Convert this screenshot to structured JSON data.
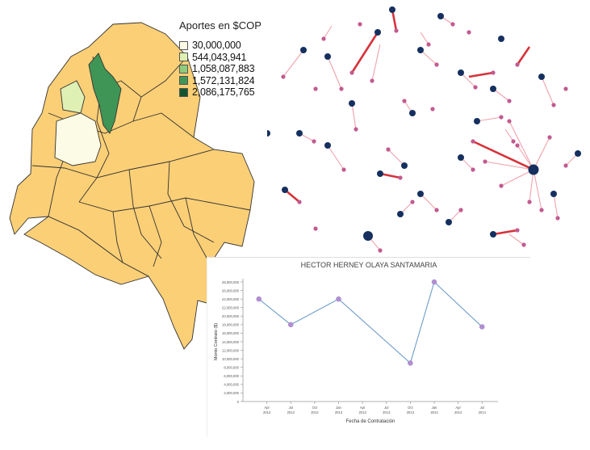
{
  "map": {
    "legend_title": "Aportes en $COP",
    "legend": [
      {
        "label": "30,000,000",
        "color": "#fcfce6"
      },
      {
        "label": "544,043,941",
        "color": "#dff0b5"
      },
      {
        "label": "1,058,087,883",
        "color": "#8fcb7d"
      },
      {
        "label": "1,572,131,824",
        "color": "#3f9556"
      },
      {
        "label": "2,086,175,765",
        "color": "#13552f"
      }
    ],
    "base_color": "#fbcf76",
    "border_color": "#333333"
  },
  "network": {
    "hub_color": "#15305f",
    "leaf_color": "#c25a8f",
    "edge_color": "#f0a2ab",
    "strong_edge_color": "#d6323a"
  },
  "chart_data": {
    "type": "line",
    "title": "HECTOR HERNEY OLAYA SANTAMARIA",
    "xlabel": "Fecha de Contratación",
    "ylabel": "Monto Contrato ($)",
    "ylim": [
      0,
      28000000
    ],
    "yticks": [
      "0",
      "2,000,000",
      "4,000,000",
      "6,000,000",
      "8,000,000",
      "10,000,000",
      "12,000,000",
      "14,000,000",
      "16,000,000",
      "18,000,000",
      "20,000,000",
      "22,000,000",
      "24,000,000",
      "26,000,000",
      "28,000,000"
    ],
    "xticks": [
      {
        "month": "Apr",
        "year": "2012",
        "date": "2012-04"
      },
      {
        "month": "Jul",
        "year": "2012",
        "date": "2012-07"
      },
      {
        "month": "Oct",
        "year": "2012",
        "date": "2012-10"
      },
      {
        "month": "Jan",
        "year": "2013",
        "date": "2013-01"
      },
      {
        "month": "Apr",
        "year": "2013",
        "date": "2013-04"
      },
      {
        "month": "Jul",
        "year": "2013",
        "date": "2013-07"
      },
      {
        "month": "Oct",
        "year": "2013",
        "date": "2013-10"
      },
      {
        "month": "Jan",
        "year": "2014",
        "date": "2014-01"
      },
      {
        "month": "Apr",
        "year": "2014",
        "date": "2014-04"
      },
      {
        "month": "Jul",
        "year": "2014",
        "date": "2014-07"
      }
    ],
    "series": [
      {
        "values": [
          {
            "x": "2012-03",
            "y": 24000000
          },
          {
            "x": "2012-07",
            "y": 18000000
          },
          {
            "x": "2013-01",
            "y": 24000000
          },
          {
            "x": "2013-10",
            "y": 9000000
          },
          {
            "x": "2014-01",
            "y": 28000000
          },
          {
            "x": "2014-07",
            "y": 17500000
          }
        ]
      }
    ],
    "line_color": "#6f9ccc",
    "marker_color": "#b28fd1"
  }
}
